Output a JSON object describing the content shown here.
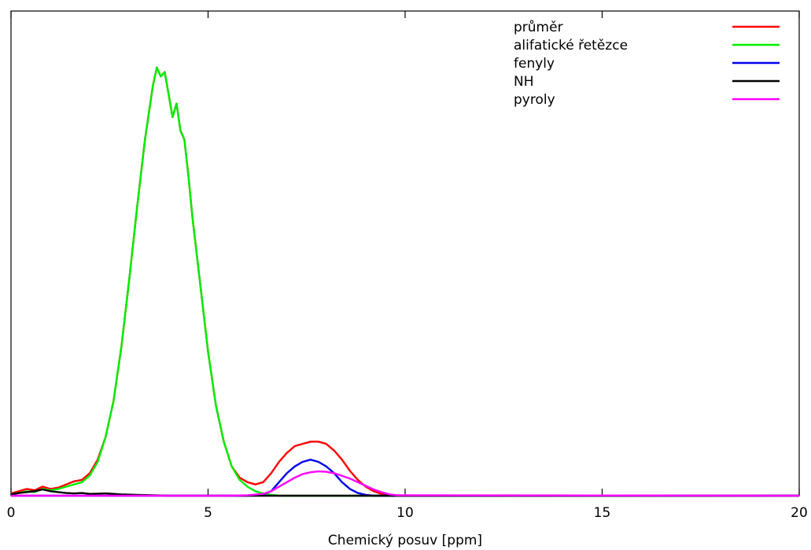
{
  "chart_data": {
    "type": "line",
    "title": "",
    "xlabel": "Chemický posuv [ppm]",
    "ylabel": "",
    "xlim": [
      0,
      20
    ],
    "ylim": [
      0,
      100
    ],
    "xticks": [
      0,
      5,
      10,
      15,
      20
    ],
    "xtick_labels": [
      "0",
      "5",
      "10",
      "15",
      "20"
    ],
    "y_tick_labels_shown": false,
    "grid": false,
    "legend_position": "top-right",
    "series": [
      {
        "name": "průměr",
        "color": "#ff0000",
        "x": [
          0,
          0.2,
          0.4,
          0.6,
          0.8,
          1.0,
          1.2,
          1.4,
          1.6,
          1.8,
          2.0,
          2.2,
          2.4,
          2.6,
          2.8,
          3.0,
          3.2,
          3.4,
          3.6,
          3.7,
          3.8,
          3.9,
          4.0,
          4.1,
          4.2,
          4.3,
          4.4,
          4.5,
          4.6,
          4.8,
          5.0,
          5.2,
          5.4,
          5.6,
          5.8,
          6.0,
          6.2,
          6.4,
          6.6,
          6.8,
          7.0,
          7.2,
          7.4,
          7.6,
          7.8,
          8.0,
          8.2,
          8.4,
          8.6,
          8.8,
          9.0,
          9.2,
          9.4,
          9.6,
          9.8,
          10,
          12,
          15,
          20
        ],
        "y": [
          0.5,
          1.0,
          1.5,
          1.2,
          2.0,
          1.5,
          1.8,
          2.5,
          3.2,
          3.5,
          5.0,
          8.0,
          13,
          21,
          33,
          48,
          64,
          79,
          91,
          95,
          93,
          94,
          89,
          84,
          87,
          81,
          79,
          71,
          62,
          47,
          32,
          20,
          12,
          6.5,
          4.0,
          3.0,
          2.5,
          3.0,
          5.0,
          7.5,
          9.5,
          11,
          11.5,
          12,
          12,
          11.5,
          10,
          8.0,
          5.5,
          3.5,
          2.0,
          1.0,
          0.4,
          0.2,
          0.1,
          0,
          0,
          0,
          0
        ]
      },
      {
        "name": "alifatické řetězce",
        "color": "#00ee00",
        "x": [
          0,
          0.2,
          0.4,
          0.6,
          0.8,
          1.0,
          1.2,
          1.4,
          1.6,
          1.8,
          2.0,
          2.2,
          2.4,
          2.6,
          2.8,
          3.0,
          3.2,
          3.4,
          3.6,
          3.7,
          3.8,
          3.9,
          4.0,
          4.1,
          4.2,
          4.3,
          4.4,
          4.5,
          4.6,
          4.8,
          5.0,
          5.2,
          5.4,
          5.6,
          5.8,
          6.0,
          6.2,
          6.4,
          6.6,
          6.8,
          7.0,
          20
        ],
        "y": [
          0.3,
          0.6,
          1.0,
          0.8,
          1.5,
          1.2,
          1.5,
          2.0,
          2.5,
          3.0,
          4.5,
          7.5,
          13,
          21,
          33,
          48,
          64,
          79,
          91,
          95,
          93,
          94,
          89,
          84,
          87,
          81,
          79,
          71,
          62,
          47,
          32,
          20,
          12,
          6.5,
          3.5,
          2.0,
          1.0,
          0.5,
          0.2,
          0,
          0,
          0
        ]
      },
      {
        "name": "fenyly",
        "color": "#0000ee",
        "x": [
          0,
          6.0,
          6.4,
          6.6,
          6.8,
          7.0,
          7.2,
          7.4,
          7.6,
          7.8,
          8.0,
          8.2,
          8.4,
          8.6,
          8.8,
          9.0,
          9.2,
          20
        ],
        "y": [
          0,
          0,
          0.3,
          1.0,
          3.0,
          5.0,
          6.5,
          7.5,
          8.0,
          7.5,
          6.5,
          5.0,
          3.0,
          1.5,
          0.6,
          0.2,
          0,
          0
        ]
      },
      {
        "name": "NH",
        "color": "#000000",
        "x": [
          0,
          0.2,
          0.4,
          0.6,
          0.8,
          1.0,
          1.2,
          1.4,
          1.6,
          1.8,
          2.0,
          2.4,
          2.8,
          3.2,
          3.6,
          4.0,
          20
        ],
        "y": [
          0.3,
          0.6,
          0.8,
          1.0,
          1.4,
          1.0,
          0.8,
          0.6,
          0.5,
          0.6,
          0.4,
          0.5,
          0.3,
          0.2,
          0.1,
          0,
          0
        ]
      },
      {
        "name": "pyroly",
        "color": "#ff00ff",
        "x": [
          0,
          5.5,
          6.0,
          6.4,
          6.6,
          6.8,
          7.0,
          7.2,
          7.4,
          7.6,
          7.8,
          8.0,
          8.2,
          8.4,
          8.6,
          8.8,
          9.0,
          9.2,
          9.4,
          9.6,
          9.8,
          20
        ],
        "y": [
          0,
          0,
          0.1,
          0.4,
          1.0,
          2.0,
          3.0,
          4.0,
          4.8,
          5.2,
          5.4,
          5.3,
          5.0,
          4.4,
          3.8,
          3.0,
          2.2,
          1.4,
          0.8,
          0.3,
          0.1,
          0
        ]
      }
    ]
  }
}
